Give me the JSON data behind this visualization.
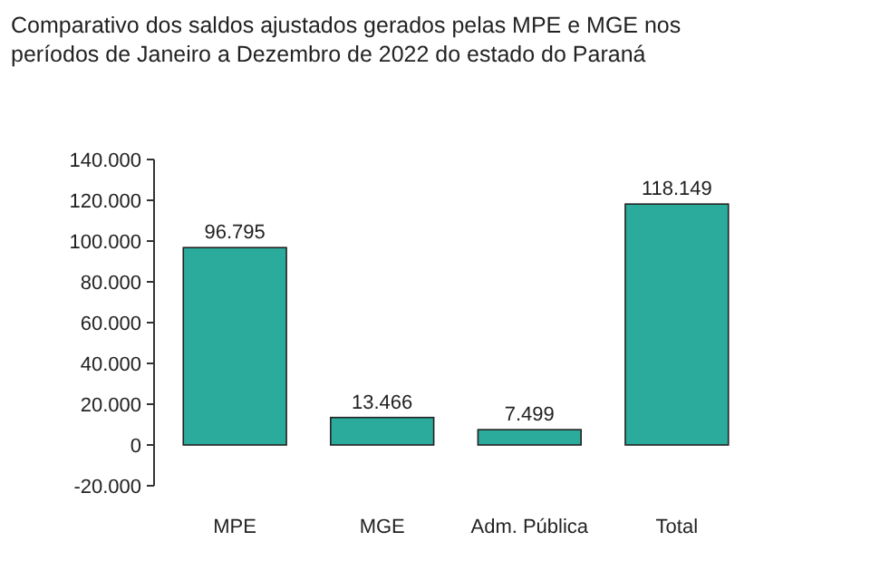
{
  "chart_data": {
    "type": "bar",
    "title": "Comparativo dos saldos ajustados gerados pelas MPE e MGE nos períodos de Janeiro a Dezembro de 2022 do estado do Paraná",
    "categories": [
      "MPE",
      "MGE",
      "Adm. Pública",
      "Total"
    ],
    "values": [
      96795,
      13466,
      7499,
      118149
    ],
    "value_labels": [
      "96.795",
      "13.466",
      "7.499",
      "118.149"
    ],
    "color": "#2bab9c",
    "ylim": [
      -20000,
      140000
    ],
    "yticks": [
      {
        "value": -20000,
        "label": "-20.000"
      },
      {
        "value": 0,
        "label": "0"
      },
      {
        "value": 20000,
        "label": "20.000"
      },
      {
        "value": 40000,
        "label": "40.000"
      },
      {
        "value": 60000,
        "label": "60.000"
      },
      {
        "value": 80000,
        "label": "80.000"
      },
      {
        "value": 100000,
        "label": "100.000"
      },
      {
        "value": 120000,
        "label": "120.000"
      },
      {
        "value": 140000,
        "label": "140.000"
      }
    ],
    "grid": false
  }
}
